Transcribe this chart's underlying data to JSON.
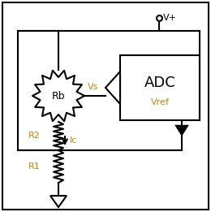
{
  "background_color": "#ffffff",
  "border_color": "#000000",
  "line_color": "#000000",
  "line_width": 1.5,
  "fig_width": 2.6,
  "fig_height": 2.61,
  "dpi": 100,
  "adc_label": "ADC",
  "vref_label": "Vref",
  "rb_label": "Rb",
  "r1_label": "R1",
  "r2_label": "R2",
  "vs_label": "Vs",
  "ic_label": "Ic",
  "vplus_label": "V+"
}
